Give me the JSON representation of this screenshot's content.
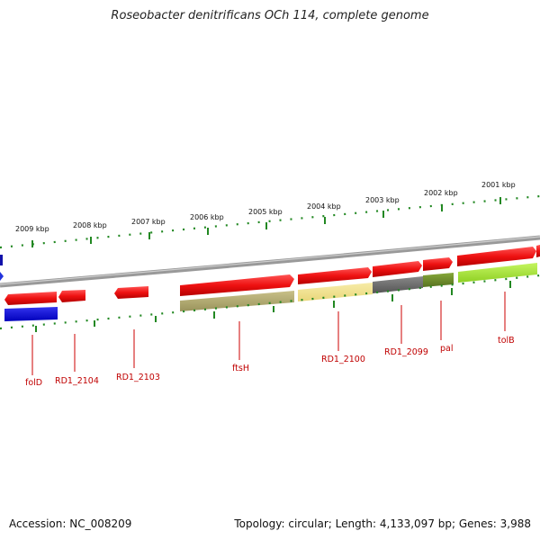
{
  "title": "Roseobacter denitrificans OCh 114, complete genome",
  "accession": "Accession: NC_008209",
  "topology": "Topology: circular; Length: 4,133,097 bp; Genes: 3,988",
  "kbp_labels": [
    {
      "text": "2009 kbp"
    },
    {
      "text": "2008 kbp"
    },
    {
      "text": "2007 kbp"
    },
    {
      "text": "2006 kbp"
    },
    {
      "text": "2005 kbp"
    },
    {
      "text": "2004 kbp"
    },
    {
      "text": "2003 kbp"
    },
    {
      "text": "2002 kbp"
    },
    {
      "text": "2001 kbp"
    }
  ],
  "gene_labels": [
    {
      "text": "folD"
    },
    {
      "text": "RD1_2104"
    },
    {
      "text": "RD1_2103"
    },
    {
      "text": "ftsH"
    },
    {
      "text": "RD1_2100"
    },
    {
      "text": "RD1_2099"
    },
    {
      "text": "pal"
    },
    {
      "text": "tolB"
    }
  ],
  "colors": {
    "cds": "#ee1111",
    "backbone": "#888888",
    "ticks": "#228822",
    "label": "#c00000",
    "blue": "#1111dd",
    "olive": "#b5ad6e",
    "yellow": "#f3e28a",
    "gray": "#6f6f6f",
    "green": "#6e8f2a",
    "lime": "#a8e63c"
  }
}
